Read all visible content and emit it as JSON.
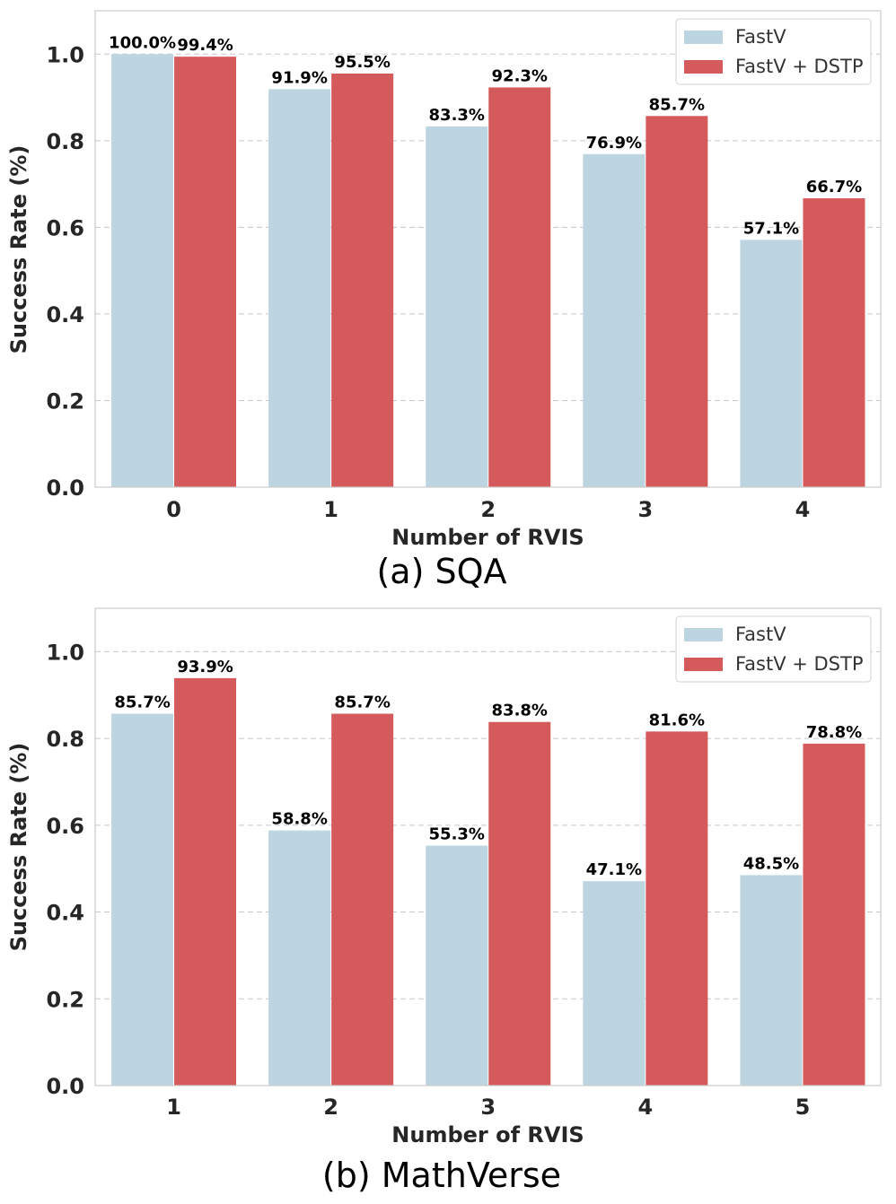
{
  "colors": {
    "fastv": "#bdd5e1",
    "dstp": "#d55a5c",
    "grid": "#c8c8c8",
    "frame": "#cccccc"
  },
  "chart_data": [
    {
      "type": "bar",
      "caption": "(a) SQA",
      "xlabel": "Number of RVIS",
      "ylabel": "Success Rate (%)",
      "ylim": [
        0,
        1.1
      ],
      "yticks": [
        "0.0",
        "0.2",
        "0.4",
        "0.6",
        "0.8",
        "1.0"
      ],
      "grid": true,
      "legend_position": "top-right",
      "categories": [
        "0",
        "1",
        "2",
        "3",
        "4"
      ],
      "series": [
        {
          "name": "FastV",
          "values": [
            1.0,
            0.919,
            0.833,
            0.769,
            0.571
          ],
          "labels": [
            "100.0%",
            "91.9%",
            "83.3%",
            "76.9%",
            "57.1%"
          ]
        },
        {
          "name": "FastV + DSTP",
          "values": [
            0.994,
            0.955,
            0.923,
            0.857,
            0.667
          ],
          "labels": [
            "99.4%",
            "95.5%",
            "92.3%",
            "85.7%",
            "66.7%"
          ]
        }
      ]
    },
    {
      "type": "bar",
      "caption": "(b) MathVerse",
      "xlabel": "Number of RVIS",
      "ylabel": "Success Rate (%)",
      "ylim": [
        0,
        1.1
      ],
      "yticks": [
        "0.0",
        "0.2",
        "0.4",
        "0.6",
        "0.8",
        "1.0"
      ],
      "grid": true,
      "legend_position": "top-right",
      "categories": [
        "1",
        "2",
        "3",
        "4",
        "5"
      ],
      "series": [
        {
          "name": "FastV",
          "values": [
            0.857,
            0.588,
            0.553,
            0.471,
            0.485
          ],
          "labels": [
            "85.7%",
            "58.8%",
            "55.3%",
            "47.1%",
            "48.5%"
          ]
        },
        {
          "name": "FastV + DSTP",
          "values": [
            0.939,
            0.857,
            0.838,
            0.816,
            0.788
          ],
          "labels": [
            "93.9%",
            "85.7%",
            "83.8%",
            "81.6%",
            "78.8%"
          ]
        }
      ]
    }
  ]
}
